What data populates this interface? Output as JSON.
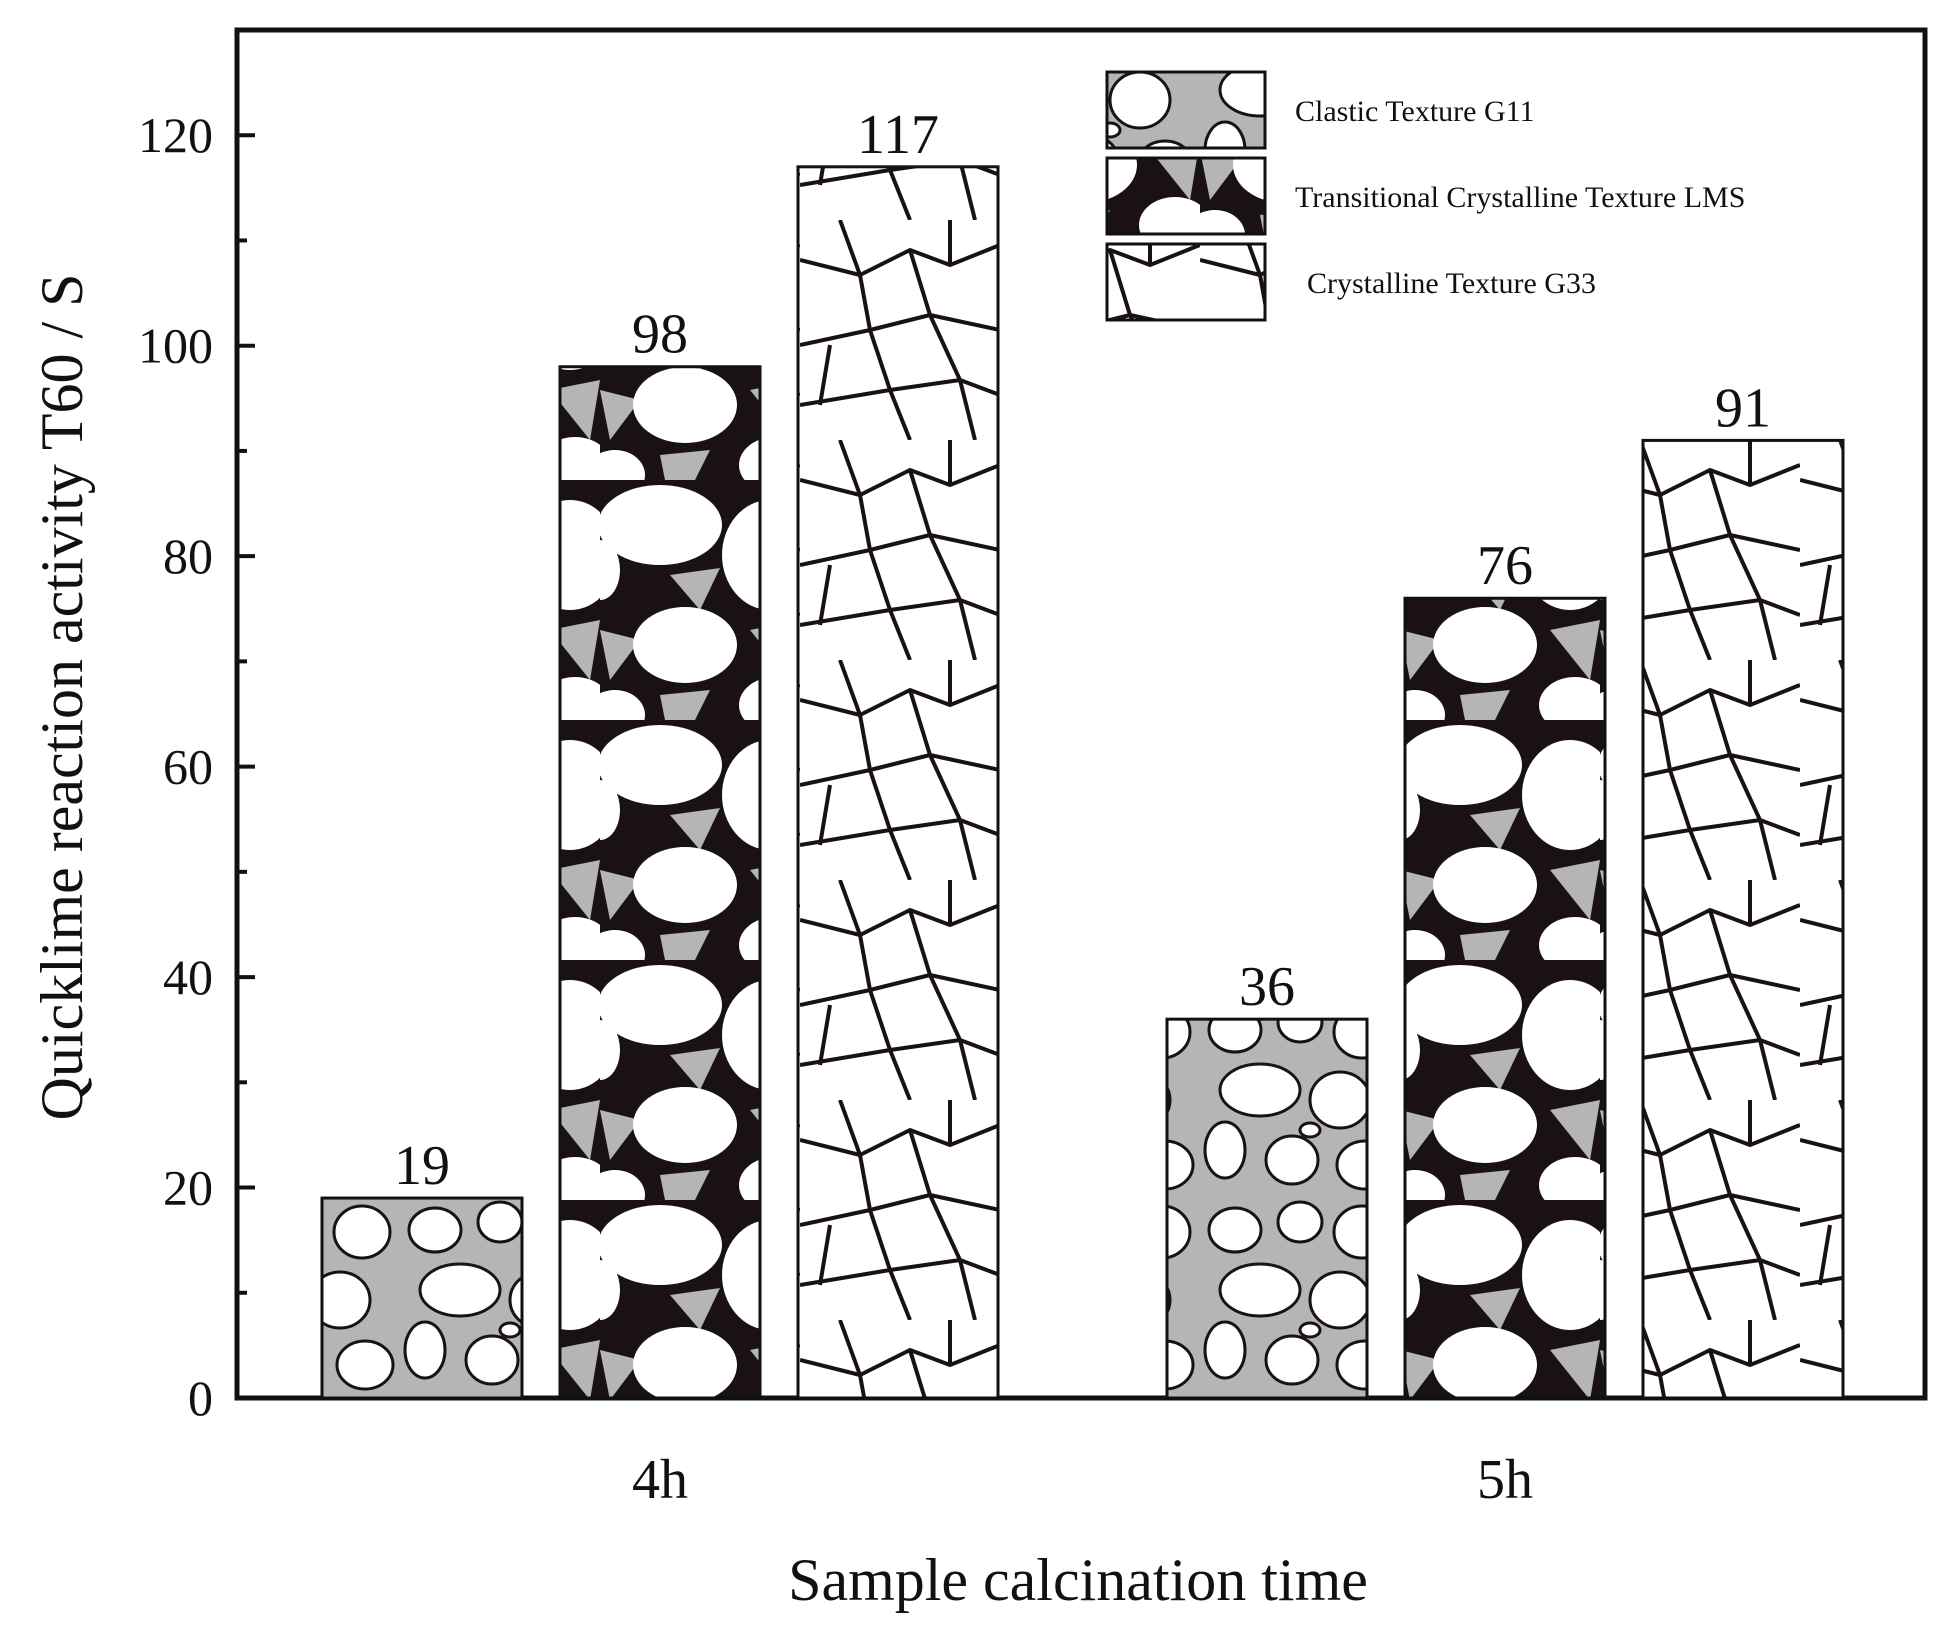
{
  "chart_data": {
    "type": "bar",
    "title": "",
    "xlabel": "Sample calcination time",
    "ylabel": "Quicklime reaction activity T60 / S",
    "categories": [
      "4h",
      "5h"
    ],
    "ylim": [
      0,
      130
    ],
    "yticks": [
      0,
      20,
      40,
      60,
      80,
      100,
      120
    ],
    "series": [
      {
        "name": "Clastic Texture G11",
        "values": [
          19,
          36
        ],
        "pattern": "clastic"
      },
      {
        "name": "Transitional Crystalline Texture LMS",
        "values": [
          98,
          76
        ],
        "pattern": "transitional"
      },
      {
        "name": "Crystalline Texture G33",
        "values": [
          117,
          91
        ],
        "pattern": "crystalline"
      }
    ],
    "data_labels": [
      [
        "19",
        "36"
      ],
      [
        "98",
        "76"
      ],
      [
        "117",
        "91"
      ]
    ],
    "legend_position": "top-right",
    "grid": false
  },
  "colors": {
    "background": "#ffffff",
    "axis": "#111111",
    "matrix_gray": "#b5b5b5",
    "grain_white": "#ffffff",
    "boundary": "#1a1212"
  }
}
